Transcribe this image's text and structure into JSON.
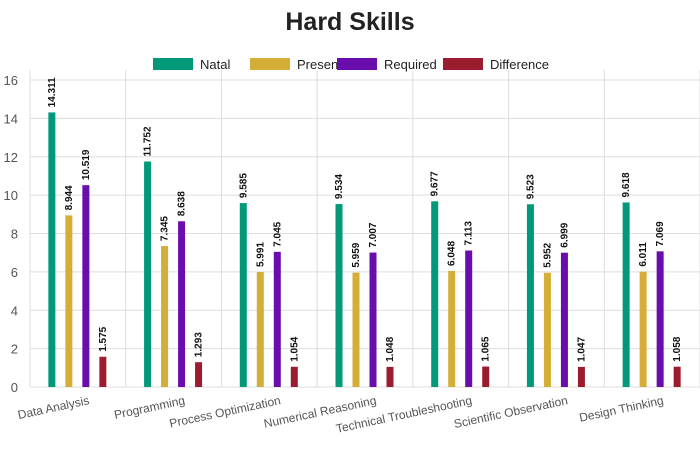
{
  "colors": {
    "Natal": "#00997a",
    "Present": "#d4ae36",
    "Required": "#6a0dad",
    "Difference": "#9b1c2e",
    "grid": "#dddddd",
    "axis_text": "#555555"
  },
  "chart_data": {
    "type": "bar",
    "title": "Hard Skills",
    "xlabel": "",
    "ylabel": "",
    "ylim": [
      0,
      16
    ],
    "yticks": [
      0,
      2,
      4,
      6,
      8,
      10,
      12,
      14,
      16
    ],
    "grid": true,
    "legend_position": "top-center",
    "data_labels": true,
    "categories": [
      "Data Analysis",
      "Programming",
      "Process Optimization",
      "Numerical Reasoning",
      "Technical Troubleshooting",
      "Scientific Observation",
      "Design Thinking"
    ],
    "series": [
      {
        "name": "Natal",
        "values": [
          14.311,
          11.752,
          9.585,
          9.534,
          9.677,
          9.523,
          9.618
        ]
      },
      {
        "name": "Present",
        "values": [
          8.944,
          7.345,
          5.991,
          5.959,
          6.048,
          5.952,
          6.011
        ]
      },
      {
        "name": "Required",
        "values": [
          10.519,
          8.638,
          7.045,
          7.007,
          7.113,
          6.999,
          7.069
        ]
      },
      {
        "name": "Difference",
        "values": [
          1.575,
          1.293,
          1.054,
          1.048,
          1.065,
          1.047,
          1.058
        ]
      }
    ]
  }
}
